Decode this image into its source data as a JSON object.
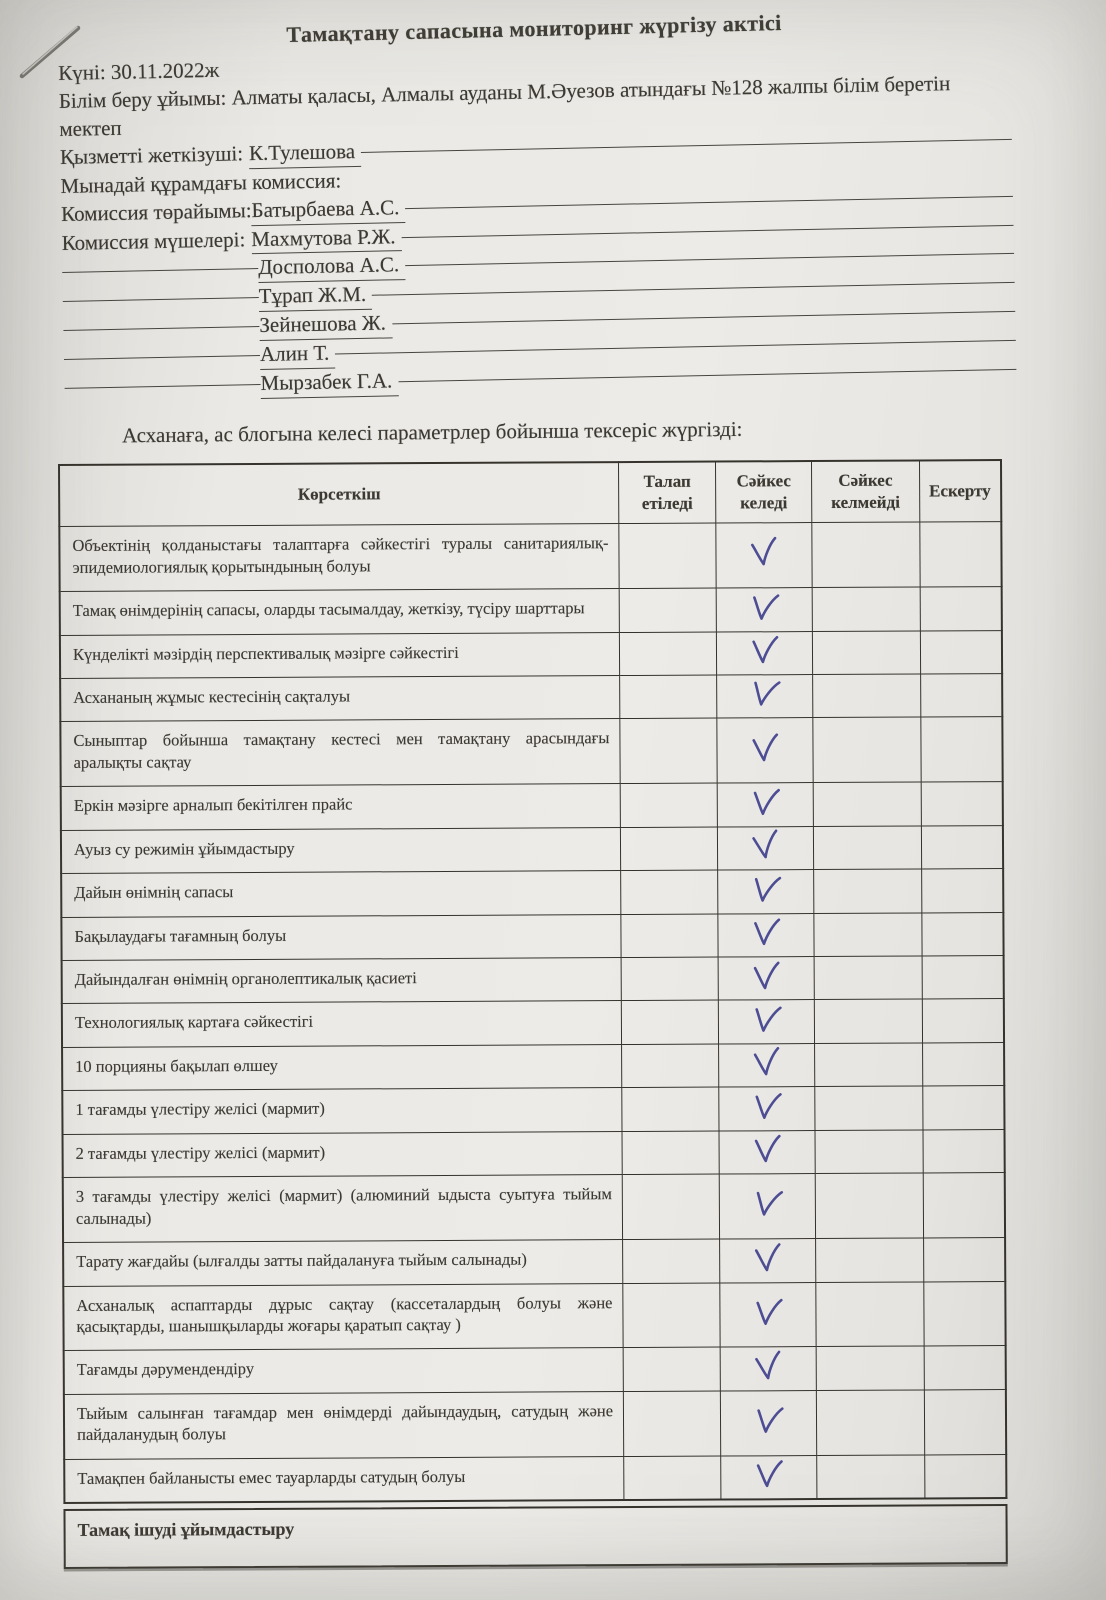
{
  "doc": {
    "title": "Тамақтану сапасына мониторинг жүргізу актісі",
    "intro": "Асханаға, ас блогына келесі параметрлер бойынша тексеріс жүргізді:"
  },
  "header": {
    "date_line": "Күні: 30.11.2022ж",
    "org_line": "Білім беру ұйымы: Алматы қаласы, Алмалы ауданы М.Әуезов атындағы №128 жалпы білім беретін мектеп",
    "provider_label": "Қызметті жеткізуші:",
    "provider_value": "К.Тулешова",
    "commission_intro": "Мынадай құрамдағы комиссия:",
    "chair_label": "Комиссия төрайымы:",
    "chair_value": "Батырбаева А.С.",
    "members_label": "Комиссия мүшелері:",
    "first_member": "Махмутова Р.Ж.",
    "members": [
      "Досполова А.С.",
      "Тұрап Ж.М.",
      "Зейнешова Ж.",
      "Алин Т.",
      "Мырзабек Г.А."
    ]
  },
  "table": {
    "columns": [
      "Көрсеткіш",
      "Талап етіледі",
      "Сәйкес келеді",
      "Сәйкес келмейді",
      "Ескерту"
    ],
    "check_symbol": "✓",
    "rows": [
      {
        "label": "Объектінің қолданыстағы талаптарға сәйкестігі туралы санитариялық-эпидемиологиялық қорытындының болуы",
        "checked_column": "Сәйкес келеді"
      },
      {
        "label": "Тамақ өнімдерінің сапасы, оларды тасымалдау, жеткізу, түсіру шарттары",
        "checked_column": "Сәйкес келеді"
      },
      {
        "label": "Күнделікті мәзірдің перспективалық мәзірге сәйкестігі",
        "checked_column": "Сәйкес келеді"
      },
      {
        "label": "Асхананың жұмыс кестесінің сақталуы",
        "checked_column": "Сәйкес келеді"
      },
      {
        "label": "Сыныптар бойынша тамақтану кестесі мен тамақтану арасындағы аралықты сақтау",
        "checked_column": "Сәйкес келеді"
      },
      {
        "label": "Еркін мәзірге арналып бекітілген прайс",
        "checked_column": "Сәйкес келеді"
      },
      {
        "label": "Ауыз су режимін ұйымдастыру",
        "checked_column": "Сәйкес келеді"
      },
      {
        "label": "Дайын өнімнің сапасы",
        "checked_column": "Сәйкес келеді"
      },
      {
        "label": "Бақылаудағы тағамның болуы",
        "checked_column": "Сәйкес келеді"
      },
      {
        "label": "Дайындалған өнімнің органолептикалық  қасиеті",
        "checked_column": "Сәйкес келеді"
      },
      {
        "label": "Технологиялық картаға сәйкестігі",
        "checked_column": "Сәйкес келеді"
      },
      {
        "label": "10 порцияны бақылап өлшеу",
        "checked_column": "Сәйкес келеді"
      },
      {
        "label": "1 тағамды үлестіру желісі  (мармит)",
        "checked_column": "Сәйкес келеді"
      },
      {
        "label": "2 тағамды үлестіру желісі  (мармит)",
        "checked_column": "Сәйкес келеді"
      },
      {
        "label": "3 тағамды үлестіру желісі   (мармит) (алюминий ыдыста суытуға тыйым салынады)",
        "checked_column": "Сәйкес келеді"
      },
      {
        "label": "Тарату жағдайы (ылғалды затты пайдалануға тыйым салынады)",
        "checked_column": "Сәйкес келеді"
      },
      {
        "label": "Асханалық аспаптарды дұрыс сақтау (кассеталардың болуы және қасықтарды, шанышқыларды жоғары қаратып сақтау )",
        "checked_column": "Сәйкес келеді"
      },
      {
        "label": "Тағамды дәрумендендіру",
        "checked_column": "Сәйкес келеді"
      },
      {
        "label": "Тыйым салынған тағамдар мен өнімдерді дайындаудың, сатудың және пайдаланудың болуы",
        "checked_column": "Сәйкес келеді"
      },
      {
        "label": "Тамақпен байланысты емес тауарларды сатудың болуы",
        "checked_column": "Сәйкес келеді"
      }
    ],
    "footer": "Тамақ ішуді ұйымдастыру"
  },
  "colors": {
    "paper": "#eae8e4",
    "ink": "#3b3931",
    "pen": "#4d4d94",
    "border": "#35332c"
  }
}
